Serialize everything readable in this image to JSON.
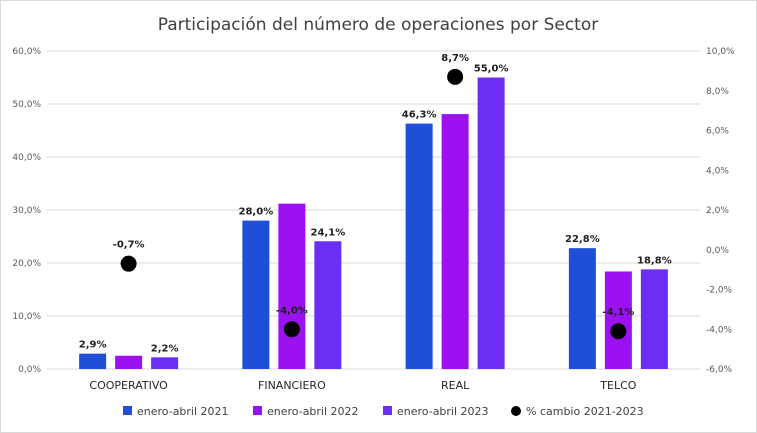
{
  "chart_data": {
    "type": "bar",
    "title": "Participación del número de operaciones por Sector",
    "categories": [
      "COOPERATIVO",
      "FINANCIERO",
      "REAL",
      "TELCO"
    ],
    "series": [
      {
        "name": "enero-abril 2021",
        "axis": "left",
        "color": "#1f4fd6",
        "values": [
          2.9,
          28.0,
          46.3,
          22.8
        ],
        "labels": [
          "2,9%",
          "28,0%",
          "46,3%",
          "22,8%"
        ]
      },
      {
        "name": "enero-abril 2022",
        "axis": "left",
        "color": "#9b11f2",
        "values": [
          2.5,
          31.2,
          48.1,
          18.4
        ],
        "labels": [
          "",
          "",
          "",
          ""
        ]
      },
      {
        "name": "enero-abril 2023",
        "axis": "left",
        "color": "#6a2ff2",
        "values": [
          2.2,
          24.1,
          55.0,
          18.8
        ],
        "labels": [
          "2,2%",
          "24,1%",
          "55,0%",
          "18,8%"
        ]
      },
      {
        "name": "% cambio 2021-2023",
        "axis": "right",
        "type": "scatter",
        "color": "#000000",
        "values": [
          -0.7,
          -4.0,
          8.7,
          -4.1
        ],
        "labels": [
          "-0,7%",
          "-4,0%",
          "8,7%",
          "-4,1%"
        ]
      }
    ],
    "left_axis": {
      "min": 0,
      "max": 60,
      "step": 10,
      "tick_labels": [
        "0,0%",
        "10,0%",
        "20,0%",
        "30,0%",
        "40,0%",
        "50,0%",
        "60,0%"
      ]
    },
    "right_axis": {
      "min": -6,
      "max": 10,
      "step": 2,
      "tick_labels": [
        "-6,0%",
        "-4,0%",
        "-2,0%",
        "0,0%",
        "2,0%",
        "4,0%",
        "6,0%",
        "8,0%",
        "10,0%"
      ]
    },
    "grid": true,
    "legend_position": "bottom"
  }
}
